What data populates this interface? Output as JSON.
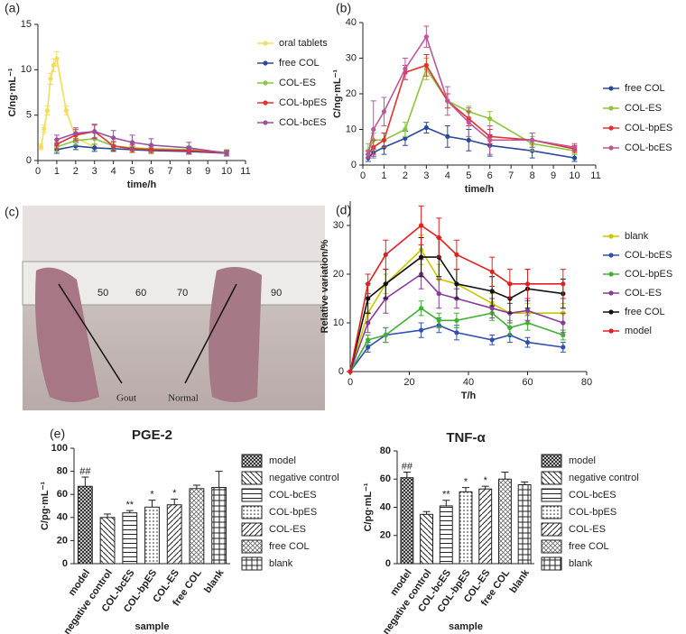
{
  "chart_data": [
    {
      "type": "line",
      "label": "(a)",
      "xlabel": "time/h",
      "ylabel": "C/ng·mL⁻¹",
      "xlim": [
        0,
        11
      ],
      "xticks": [
        0,
        1,
        2,
        3,
        4,
        5,
        6,
        7,
        8,
        9,
        10,
        11
      ],
      "ylim": [
        0,
        15
      ],
      "yticks": [
        0,
        5,
        10,
        15
      ],
      "series": [
        {
          "name": "oral tablets",
          "color": "#f2de5a",
          "x": [
            0.17,
            0.33,
            0.5,
            0.67,
            0.83,
            1,
            1.5,
            2,
            3
          ],
          "values": [
            1.5,
            3.5,
            5.5,
            9,
            10.5,
            11.2,
            5.5,
            2.5,
            1.5
          ],
          "errors": [
            0.3,
            0.4,
            0.5,
            0.6,
            0.7,
            0.8,
            0.5,
            0.4,
            0.3
          ]
        },
        {
          "name": "free COL",
          "color": "#2c4a9a",
          "x": [
            1,
            2,
            3,
            4,
            5,
            6,
            8,
            10
          ],
          "values": [
            1.2,
            1.6,
            1.4,
            1.3,
            1.2,
            1.1,
            1.0,
            0.8
          ],
          "errors": [
            0.4,
            0.4,
            0.4,
            0.3,
            0.3,
            0.3,
            0.3,
            0.2
          ]
        },
        {
          "name": "COL-ES",
          "color": "#8cc63f",
          "x": [
            1,
            2,
            3,
            4,
            5,
            6,
            8,
            10
          ],
          "values": [
            1.5,
            2.2,
            2.4,
            1.6,
            1.4,
            1.3,
            1.2,
            0.9
          ],
          "errors": [
            0.5,
            0.5,
            0.6,
            0.4,
            0.4,
            0.4,
            0.4,
            0.3
          ]
        },
        {
          "name": "COL-bpES",
          "color": "#e53030",
          "x": [
            1,
            2,
            3,
            4,
            5,
            6,
            8,
            10
          ],
          "values": [
            1.8,
            2.8,
            3.2,
            1.6,
            1.3,
            1.2,
            1.1,
            0.8
          ],
          "errors": [
            0.5,
            0.6,
            0.7,
            0.5,
            0.4,
            0.4,
            0.4,
            0.3
          ]
        },
        {
          "name": "COL-bcES",
          "color": "#9b4f9f",
          "x": [
            1,
            2,
            3,
            4,
            5,
            6,
            8,
            10
          ],
          "values": [
            2.3,
            3.0,
            3.2,
            2.5,
            2.0,
            1.7,
            1.4,
            0.8
          ],
          "errors": [
            0.5,
            0.6,
            0.8,
            0.8,
            0.8,
            0.7,
            0.6,
            0.3
          ]
        }
      ]
    },
    {
      "type": "line",
      "label": "(b)",
      "xlabel": "time/h",
      "ylabel": "C/ng·mL⁻¹",
      "xlim": [
        0,
        11
      ],
      "xticks": [
        0,
        1,
        2,
        3,
        4,
        5,
        6,
        7,
        8,
        9,
        10,
        11
      ],
      "ylim": [
        0,
        40
      ],
      "yticks": [
        0,
        10,
        20,
        30,
        40
      ],
      "series": [
        {
          "name": "free COL",
          "color": "#2c4a9a",
          "x": [
            0.25,
            0.5,
            1,
            2,
            3,
            4,
            5,
            6,
            8,
            10
          ],
          "values": [
            2,
            3.5,
            5,
            7.5,
            10.5,
            8,
            7,
            5.5,
            4,
            2
          ],
          "errors": [
            1,
            1,
            2,
            2,
            1.5,
            3,
            3,
            3,
            2,
            1
          ]
        },
        {
          "name": "COL-ES",
          "color": "#8cc63f",
          "x": [
            0.25,
            0.5,
            1,
            2,
            3,
            4,
            5,
            6,
            8,
            10
          ],
          "values": [
            4,
            7,
            7,
            10,
            27,
            18,
            15,
            13,
            6,
            4
          ],
          "errors": [
            2,
            2,
            2,
            2,
            3,
            2,
            1.5,
            2,
            2,
            1
          ]
        },
        {
          "name": "COL-bpES",
          "color": "#e53030",
          "x": [
            0.25,
            0.5,
            1,
            2,
            3,
            4,
            5,
            6,
            8,
            10
          ],
          "values": [
            3,
            5,
            7,
            26,
            28,
            18,
            13,
            8,
            7,
            4.5
          ],
          "errors": [
            1,
            2,
            2,
            2,
            3,
            2,
            2,
            2,
            2,
            1
          ]
        },
        {
          "name": "COL-bcES",
          "color": "#c0559a",
          "x": [
            0.25,
            0.5,
            1,
            2,
            3,
            4,
            5,
            6,
            8,
            10
          ],
          "values": [
            3,
            10,
            15,
            27,
            36,
            18,
            12,
            7,
            7,
            5
          ],
          "errors": [
            1,
            8,
            4,
            3,
            3,
            4,
            4,
            4,
            2,
            1
          ]
        }
      ]
    },
    {
      "type": "line",
      "label": "(d)",
      "xlabel": "T/h",
      "ylabel": "Relative variation/%",
      "xlim": [
        0,
        80
      ],
      "xticks": [
        0,
        20,
        40,
        60,
        80
      ],
      "ylim": [
        0,
        35
      ],
      "yticks": [
        0,
        10,
        20,
        30
      ],
      "series": [
        {
          "name": "blank",
          "color": "#c8c800",
          "x": [
            0,
            6,
            12,
            24,
            30,
            36,
            48,
            54,
            60,
            72
          ],
          "values": [
            0,
            12,
            18,
            25,
            19,
            18,
            14,
            12,
            12,
            12
          ],
          "errors": [
            0,
            2,
            2,
            3,
            3,
            3,
            2,
            2,
            2,
            2
          ]
        },
        {
          "name": "COL-bcES",
          "color": "#3050b0",
          "x": [
            0,
            6,
            12,
            24,
            30,
            36,
            48,
            54,
            60,
            72
          ],
          "values": [
            0,
            5,
            7.5,
            8.5,
            9.5,
            8,
            6.5,
            7.5,
            6,
            5
          ],
          "errors": [
            0,
            1,
            1.5,
            1.5,
            1.5,
            1.5,
            1,
            1.5,
            1,
            1
          ]
        },
        {
          "name": "COL-bpES",
          "color": "#40b030",
          "x": [
            0,
            6,
            12,
            24,
            30,
            36,
            48,
            54,
            60,
            72
          ],
          "values": [
            0,
            6.5,
            7.5,
            13,
            10.5,
            10.5,
            12,
            9,
            10,
            7.5
          ],
          "errors": [
            0,
            1,
            1.5,
            1.5,
            1.5,
            1.5,
            1.5,
            1.5,
            1.5,
            1
          ]
        },
        {
          "name": "COL-ES",
          "color": "#8a3a9a",
          "x": [
            0,
            6,
            12,
            24,
            30,
            36,
            48,
            54,
            60,
            72
          ],
          "values": [
            0,
            10,
            15,
            20,
            16,
            15,
            13,
            12,
            12.5,
            10
          ],
          "errors": [
            0,
            2,
            3,
            3,
            3,
            2,
            2,
            2,
            2,
            2
          ]
        },
        {
          "name": "free COL",
          "color": "#111111",
          "x": [
            0,
            6,
            12,
            24,
            30,
            36,
            48,
            54,
            60,
            72
          ],
          "values": [
            0,
            15,
            18,
            23.5,
            23.5,
            18,
            16.5,
            15,
            17,
            16
          ],
          "errors": [
            0,
            3,
            3,
            4,
            4,
            3,
            3,
            3,
            4,
            3
          ]
        },
        {
          "name": "model",
          "color": "#e02020",
          "x": [
            0,
            6,
            12,
            24,
            30,
            36,
            48,
            54,
            60,
            72
          ],
          "values": [
            0,
            18,
            24,
            30,
            27.5,
            24,
            20.5,
            18,
            18,
            18
          ],
          "errors": [
            0,
            2,
            3,
            4,
            4,
            3,
            3,
            3,
            3,
            3
          ]
        }
      ]
    },
    {
      "type": "bar",
      "label": "(e)",
      "title": "PGE-2",
      "xlabel": "sample",
      "ylabel": "C/pg·mL⁻¹",
      "color": "#222222",
      "categories": [
        "model",
        "negative control",
        "COL-bcES",
        "COL-bpES",
        "COL-ES",
        "free COL",
        "blank"
      ],
      "values": [
        67,
        40,
        44,
        49,
        51,
        65,
        66
      ],
      "errors": [
        8,
        3,
        2,
        6,
        5,
        3,
        14
      ],
      "ylim": [
        0,
        100
      ],
      "yticks": [
        0,
        20,
        40,
        60,
        80,
        100
      ],
      "annotations": [
        {
          "category": "model",
          "text": "##"
        },
        {
          "category": "COL-bcES",
          "text": "**"
        },
        {
          "category": "COL-bpES",
          "text": "*"
        },
        {
          "category": "COL-ES",
          "text": "*"
        }
      ]
    },
    {
      "type": "bar",
      "title": "TNF-α",
      "xlabel": "sample",
      "ylabel": "C/pg·mL⁻¹",
      "color": "#222222",
      "categories": [
        "model",
        "negative control",
        "COL-bcES",
        "COL-bpES",
        "COL-ES",
        "free COL",
        "blank"
      ],
      "values": [
        61,
        35,
        41,
        51,
        53,
        60,
        56
      ],
      "errors": [
        4,
        2,
        4,
        3,
        2,
        5,
        2
      ],
      "ylim": [
        0,
        80
      ],
      "yticks": [
        0,
        20,
        40,
        60,
        80
      ],
      "annotations": [
        {
          "category": "model",
          "text": "##"
        },
        {
          "category": "COL-bcES",
          "text": "**"
        },
        {
          "category": "COL-bpES",
          "text": "*"
        },
        {
          "category": "COL-ES",
          "text": "*"
        }
      ]
    }
  ],
  "photo": {
    "label": "(c)",
    "ruler_labels": [
      "50",
      "60",
      "70",
      "90"
    ],
    "annotations": [
      "Gout",
      "Normal"
    ]
  }
}
